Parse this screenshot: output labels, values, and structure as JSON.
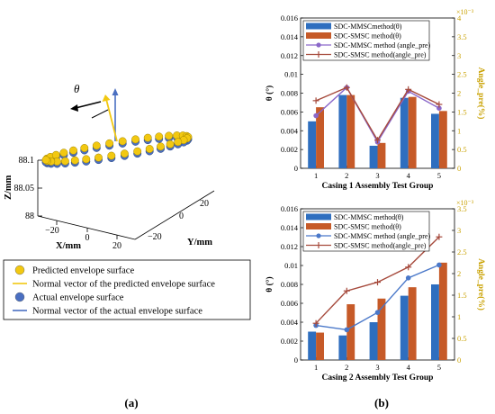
{
  "panel_labels": {
    "a": "(a)",
    "b": "(b)"
  },
  "plot3d": {
    "theta_label": "θ",
    "z_label": "Z/mm",
    "x_label": "X/mm",
    "y_label": "Y/mm",
    "z_ticks": [
      "88.1",
      "88.05",
      "88"
    ],
    "x_ticks": [
      "−20",
      "0",
      "20"
    ],
    "y_ticks": [
      "−20",
      "0",
      "20"
    ],
    "colors": {
      "predicted": "#f2c811",
      "actual": "#4a6fc1",
      "pred_vector": "#f2c811",
      "act_vector": "#4a6fc1",
      "theta_arrow": "#000000"
    }
  },
  "legend3d": {
    "items": [
      {
        "label": "Predicted envelope surface",
        "kind": "dot",
        "color": "#f2c811"
      },
      {
        "label": "Normal vector of the predicted envelope surface",
        "kind": "line",
        "color": "#f2c811"
      },
      {
        "label": "Actual envelope surface",
        "kind": "dot",
        "color": "#4a6fc1"
      },
      {
        "label": "Normal vector of the actual envelope surface",
        "kind": "line",
        "color": "#4a6fc1"
      }
    ]
  },
  "chart_data": [
    {
      "type": "bar",
      "title": "",
      "xlabel": "Casing 1 Assembly Test Group",
      "ylabel": "θ (°)",
      "y2label": "Angle_pre(%)",
      "y2_exponent": "×10⁻³",
      "categories": [
        "1",
        "2",
        "3",
        "4",
        "5"
      ],
      "ylim": [
        0,
        0.016
      ],
      "yticks": [
        "0",
        "0.002",
        "0.004",
        "0.006",
        "0.008",
        "0.01",
        "0.012",
        "0.014",
        "0.016"
      ],
      "y2lim": [
        0,
        4
      ],
      "y2ticks": [
        "0",
        "0.5",
        "1",
        "1.5",
        "2",
        "2.5",
        "3",
        "3.5",
        "4"
      ],
      "bar_series": [
        {
          "name": "SDC-MMSCmethod(θ)",
          "color": "#2e6ebf",
          "values": [
            0.005,
            0.0078,
            0.0024,
            0.0075,
            0.0058
          ]
        },
        {
          "name": "SDC-SMSC method(θ)",
          "color": "#c65a28",
          "values": [
            0.0065,
            0.0078,
            0.0027,
            0.0076,
            0.0061
          ]
        }
      ],
      "line_series": [
        {
          "name": "SDC-MMSC method (angle_pre)",
          "color": "#8a67c9",
          "marker": "circle",
          "values": [
            1.4,
            2.15,
            0.7,
            2.05,
            1.6
          ]
        },
        {
          "name": "SDC-SMSC method(angle_pre)",
          "color": "#a64a3c",
          "marker": "plus",
          "values": [
            1.8,
            2.15,
            0.75,
            2.1,
            1.7
          ]
        }
      ],
      "legend_position": "top-left"
    },
    {
      "type": "bar",
      "title": "",
      "xlabel": "Casing 2 Assembly Test Group",
      "ylabel": "θ (°)",
      "y2label": "Angle_pre(%)",
      "y2_exponent": "×10⁻³",
      "categories": [
        "1",
        "2",
        "3",
        "4",
        "5"
      ],
      "ylim": [
        0,
        0.016
      ],
      "yticks": [
        "0",
        "0.002",
        "0.004",
        "0.006",
        "0.008",
        "0.01",
        "0.012",
        "0.014",
        "0.016"
      ],
      "y2lim": [
        0,
        3.5
      ],
      "y2ticks": [
        "0",
        "0.5",
        "1",
        "1.5",
        "2",
        "2.5",
        "3",
        "3.5"
      ],
      "bar_series": [
        {
          "name": "SDC-MMSC method(θ)",
          "color": "#2e6ebf",
          "values": [
            0.003,
            0.0026,
            0.004,
            0.0068,
            0.008
          ]
        },
        {
          "name": "SDC-SMSC method(θ)",
          "color": "#c65a28",
          "values": [
            0.0029,
            0.0059,
            0.0065,
            0.0077,
            0.0103
          ]
        }
      ],
      "line_series": [
        {
          "name": "SDC-MMSC method (angle_pre)",
          "color": "#4a78c9",
          "marker": "circle",
          "values": [
            0.8,
            0.7,
            1.1,
            1.9,
            2.2
          ]
        },
        {
          "name": "SDC-SMSC method(angle_pre)",
          "color": "#a64a3c",
          "marker": "plus",
          "values": [
            0.85,
            1.6,
            1.8,
            2.15,
            2.85
          ]
        }
      ],
      "legend_position": "top-left"
    }
  ]
}
